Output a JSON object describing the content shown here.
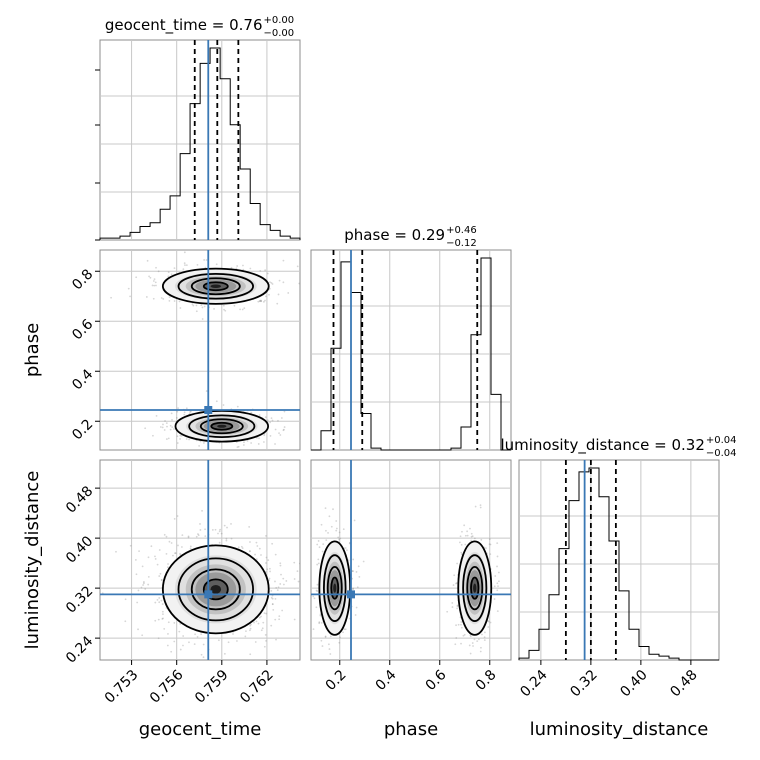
{
  "chart_data": {
    "type": "corner",
    "parameters": [
      "geocent_time",
      "phase",
      "luminosity_distance"
    ],
    "titles": {
      "geocent_time": {
        "main": "geocent_time = 0.76",
        "plus": "+0.00",
        "minus": "−0.00"
      },
      "phase": {
        "main": "phase = 0.29",
        "plus": "+0.46",
        "minus": "−0.12"
      },
      "luminosity_distance": {
        "main": "luminosity_distance = 0.32",
        "plus": "+0.04",
        "minus": "−0.04"
      }
    },
    "axis_labels": {
      "x": [
        "geocent_time",
        "phase",
        "luminosity_distance"
      ],
      "y": [
        "phase",
        "luminosity_distance"
      ]
    },
    "ranges": {
      "geocent_time": [
        0.7509,
        0.7642
      ],
      "phase": [
        0.085,
        0.885
      ],
      "luminosity_distance": [
        0.205,
        0.525
      ]
    },
    "ticks": {
      "geocent_time": [
        0.753,
        0.756,
        0.759,
        0.762
      ],
      "phase": [
        0.2,
        0.4,
        0.6,
        0.8
      ],
      "luminosity_distance": [
        0.24,
        0.32,
        0.4,
        0.48
      ]
    },
    "tick_labels": {
      "geocent_time": [
        "0.753",
        "0.756",
        "0.759",
        "0.762"
      ],
      "phase": [
        "0.2",
        "0.4",
        "0.6",
        "0.8"
      ],
      "luminosity_distance": [
        "0.24",
        "0.32",
        "0.40",
        "0.48"
      ]
    },
    "truths": {
      "geocent_time": 0.7581,
      "phase": 0.245,
      "luminosity_distance": 0.31
    },
    "quantiles": {
      "geocent_time": [
        0.7572,
        0.7587,
        0.7601
      ],
      "phase": [
        0.175,
        0.29,
        0.75
      ],
      "luminosity_distance": [
        0.28,
        0.32,
        0.36
      ]
    },
    "histograms": {
      "geocent_time": {
        "edges": [
          0.7509,
          0.75157,
          0.75223,
          0.7529,
          0.75356,
          0.75423,
          0.7549,
          0.75556,
          0.75623,
          0.75689,
          0.75756,
          0.75822,
          0.75889,
          0.75956,
          0.76022,
          0.76089,
          0.76155,
          0.76222,
          0.76288,
          0.76355,
          0.7642
        ],
        "counts": [
          0.01,
          0.01,
          0.02,
          0.04,
          0.07,
          0.09,
          0.16,
          0.23,
          0.45,
          0.71,
          0.92,
          1.0,
          0.84,
          0.6,
          0.37,
          0.19,
          0.08,
          0.05,
          0.02,
          0.01
        ]
      },
      "phase": {
        "edges": [
          0.085,
          0.125,
          0.165,
          0.205,
          0.245,
          0.285,
          0.325,
          0.365,
          0.405,
          0.445,
          0.485,
          0.525,
          0.565,
          0.605,
          0.645,
          0.685,
          0.725,
          0.765,
          0.805,
          0.845,
          0.885
        ],
        "counts": [
          0.0,
          0.1,
          0.53,
          0.98,
          0.82,
          0.19,
          0.01,
          0.0,
          0.0,
          0.0,
          0.0,
          0.0,
          0.0,
          0.0,
          0.01,
          0.12,
          0.6,
          1.0,
          0.29,
          0.0
        ]
      },
      "luminosity_distance": {
        "edges": [
          0.205,
          0.221,
          0.237,
          0.253,
          0.269,
          0.285,
          0.301,
          0.317,
          0.333,
          0.349,
          0.365,
          0.381,
          0.397,
          0.413,
          0.429,
          0.445,
          0.461,
          0.477,
          0.493,
          0.509,
          0.525
        ],
        "counts": [
          0.01,
          0.05,
          0.16,
          0.34,
          0.58,
          0.83,
          0.98,
          1.0,
          0.85,
          0.62,
          0.36,
          0.16,
          0.07,
          0.03,
          0.02,
          0.01,
          0.0,
          0.0,
          0.0,
          0.0
        ]
      }
    },
    "pair_modes": [
      {
        "x": "geocent_time",
        "y": "phase",
        "modes": [
          {
            "cx": 0.7586,
            "cy": 0.74,
            "sx": 0.0016,
            "sy": 0.032,
            "w": 0.52
          },
          {
            "cx": 0.759,
            "cy": 0.18,
            "sx": 0.0014,
            "sy": 0.028,
            "w": 0.48
          }
        ]
      },
      {
        "x": "geocent_time",
        "y": "luminosity_distance",
        "modes": [
          {
            "cx": 0.7586,
            "cy": 0.318,
            "sx": 0.0016,
            "sy": 0.032,
            "w": 1.0
          }
        ]
      },
      {
        "x": "phase",
        "y": "luminosity_distance",
        "modes": [
          {
            "cx": 0.18,
            "cy": 0.32,
            "sx": 0.028,
            "sy": 0.034,
            "w": 0.5
          },
          {
            "cx": 0.74,
            "cy": 0.32,
            "sx": 0.03,
            "sy": 0.034,
            "w": 0.5
          }
        ]
      }
    ]
  }
}
